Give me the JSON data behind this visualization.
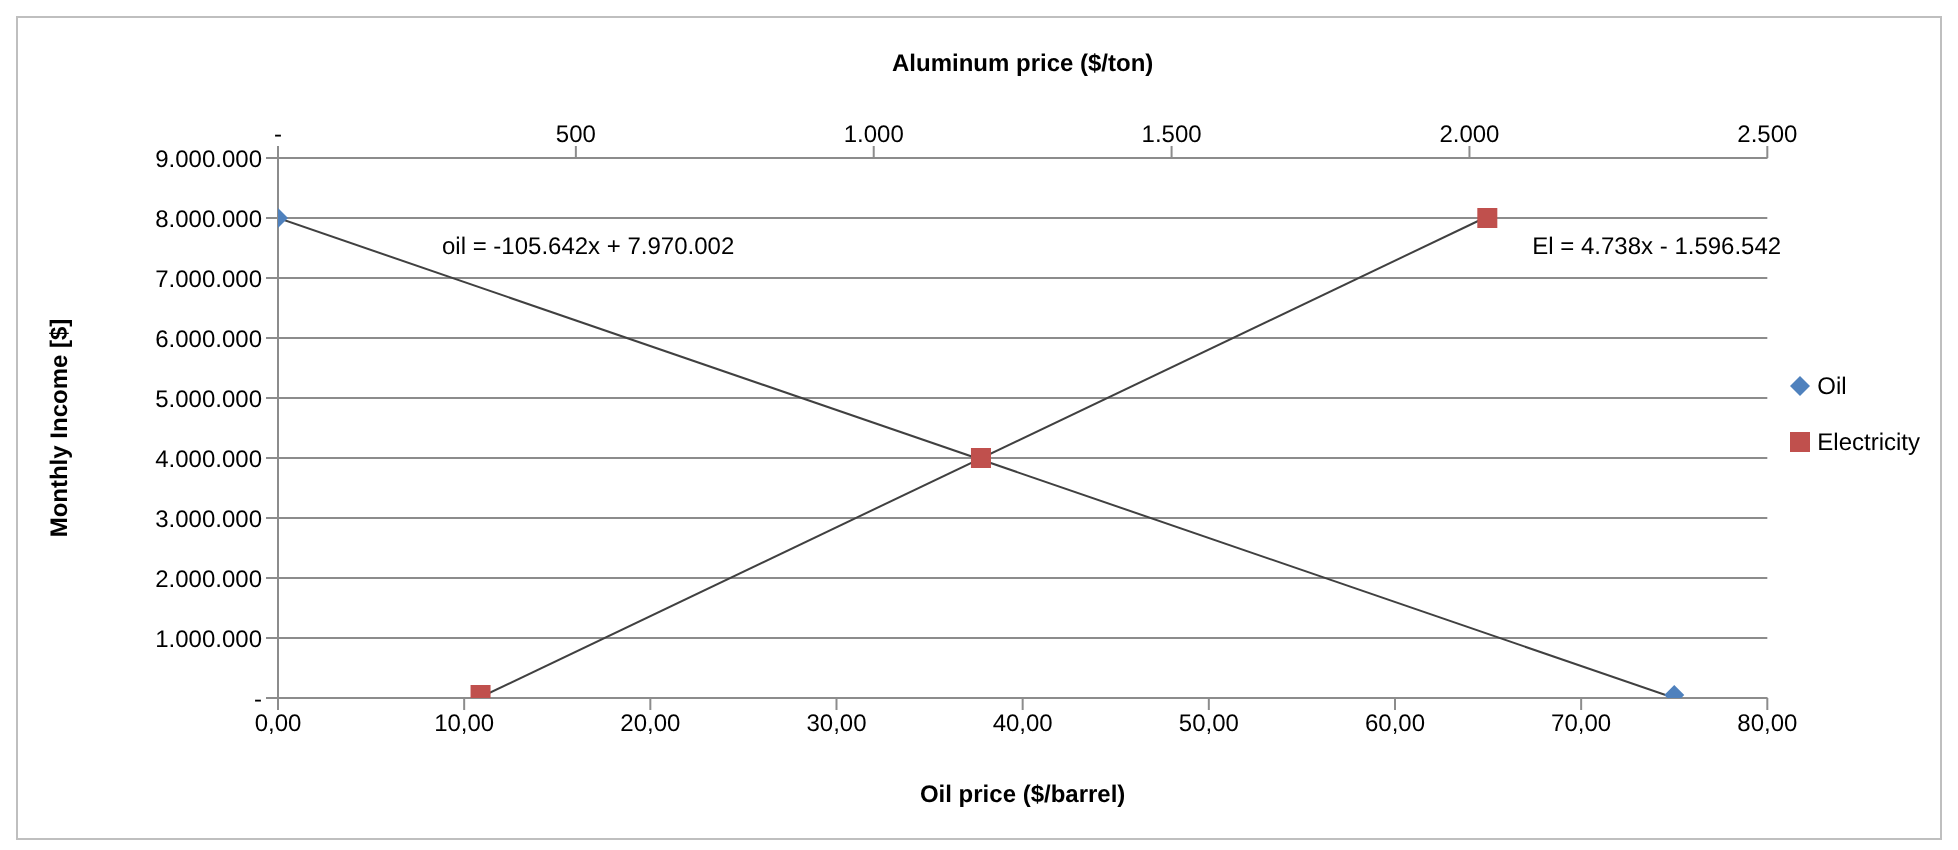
{
  "chart_data": {
    "type": "scatter",
    "xlabel": "Oil price ($/barrel)",
    "x2label": "Aluminum price ($/ton)",
    "ylabel": "Monthly Income [$]",
    "xlim": [
      0,
      80
    ],
    "xticks": [
      {
        "value": 0,
        "label": "0,00"
      },
      {
        "value": 10,
        "label": "10,00"
      },
      {
        "value": 20,
        "label": "20,00"
      },
      {
        "value": 30,
        "label": "30,00"
      },
      {
        "value": 40,
        "label": "40,00"
      },
      {
        "value": 50,
        "label": "50,00"
      },
      {
        "value": 60,
        "label": "60,00"
      },
      {
        "value": 70,
        "label": "70,00"
      },
      {
        "value": 80,
        "label": "80,00"
      }
    ],
    "x2lim": [
      0,
      2500
    ],
    "x2ticks": [
      {
        "value": 0,
        "label": "-"
      },
      {
        "value": 500,
        "label": "500"
      },
      {
        "value": 1000,
        "label": "1.000"
      },
      {
        "value": 1500,
        "label": "1.500"
      },
      {
        "value": 2000,
        "label": "2.000"
      },
      {
        "value": 2500,
        "label": "2.500"
      }
    ],
    "ylim": [
      0,
      9000000
    ],
    "yticks": [
      {
        "value": 0,
        "label": "-"
      },
      {
        "value": 1000000,
        "label": "1.000.000"
      },
      {
        "value": 2000000,
        "label": "2.000.000"
      },
      {
        "value": 3000000,
        "label": "3.000.000"
      },
      {
        "value": 4000000,
        "label": "4.000.000"
      },
      {
        "value": 5000000,
        "label": "5.000.000"
      },
      {
        "value": 6000000,
        "label": "6.000.000"
      },
      {
        "value": 7000000,
        "label": "7.000.000"
      },
      {
        "value": 8000000,
        "label": "8.000.000"
      },
      {
        "value": 9000000,
        "label": "9.000.000"
      }
    ],
    "grid": "y",
    "legend": "right",
    "series": [
      {
        "type": "line",
        "color": "#404040",
        "marker": "none",
        "x": [
          0,
          75
        ],
        "values": [
          8000000,
          0
        ]
      },
      {
        "type": "line",
        "color": "#404040",
        "marker": "none",
        "axis": "x2",
        "x": [
          337,
          2025
        ],
        "values": [
          0,
          8000000
        ]
      },
      {
        "name": "Oil",
        "color": "#4f81bd",
        "marker": "diamond",
        "x": [
          0,
          37.8,
          75
        ],
        "values": [
          8000000,
          null,
          50000
        ]
      },
      {
        "name": "Electricity",
        "color": "#c0504d",
        "marker": "square",
        "axis": "x2",
        "x": [
          340,
          1180,
          2030
        ],
        "values": [
          50000,
          4000000,
          8000000
        ]
      }
    ],
    "annotations": [
      "oil = -105.642x + 7.970.002",
      "El = 4.738x - 1.596.542"
    ]
  }
}
